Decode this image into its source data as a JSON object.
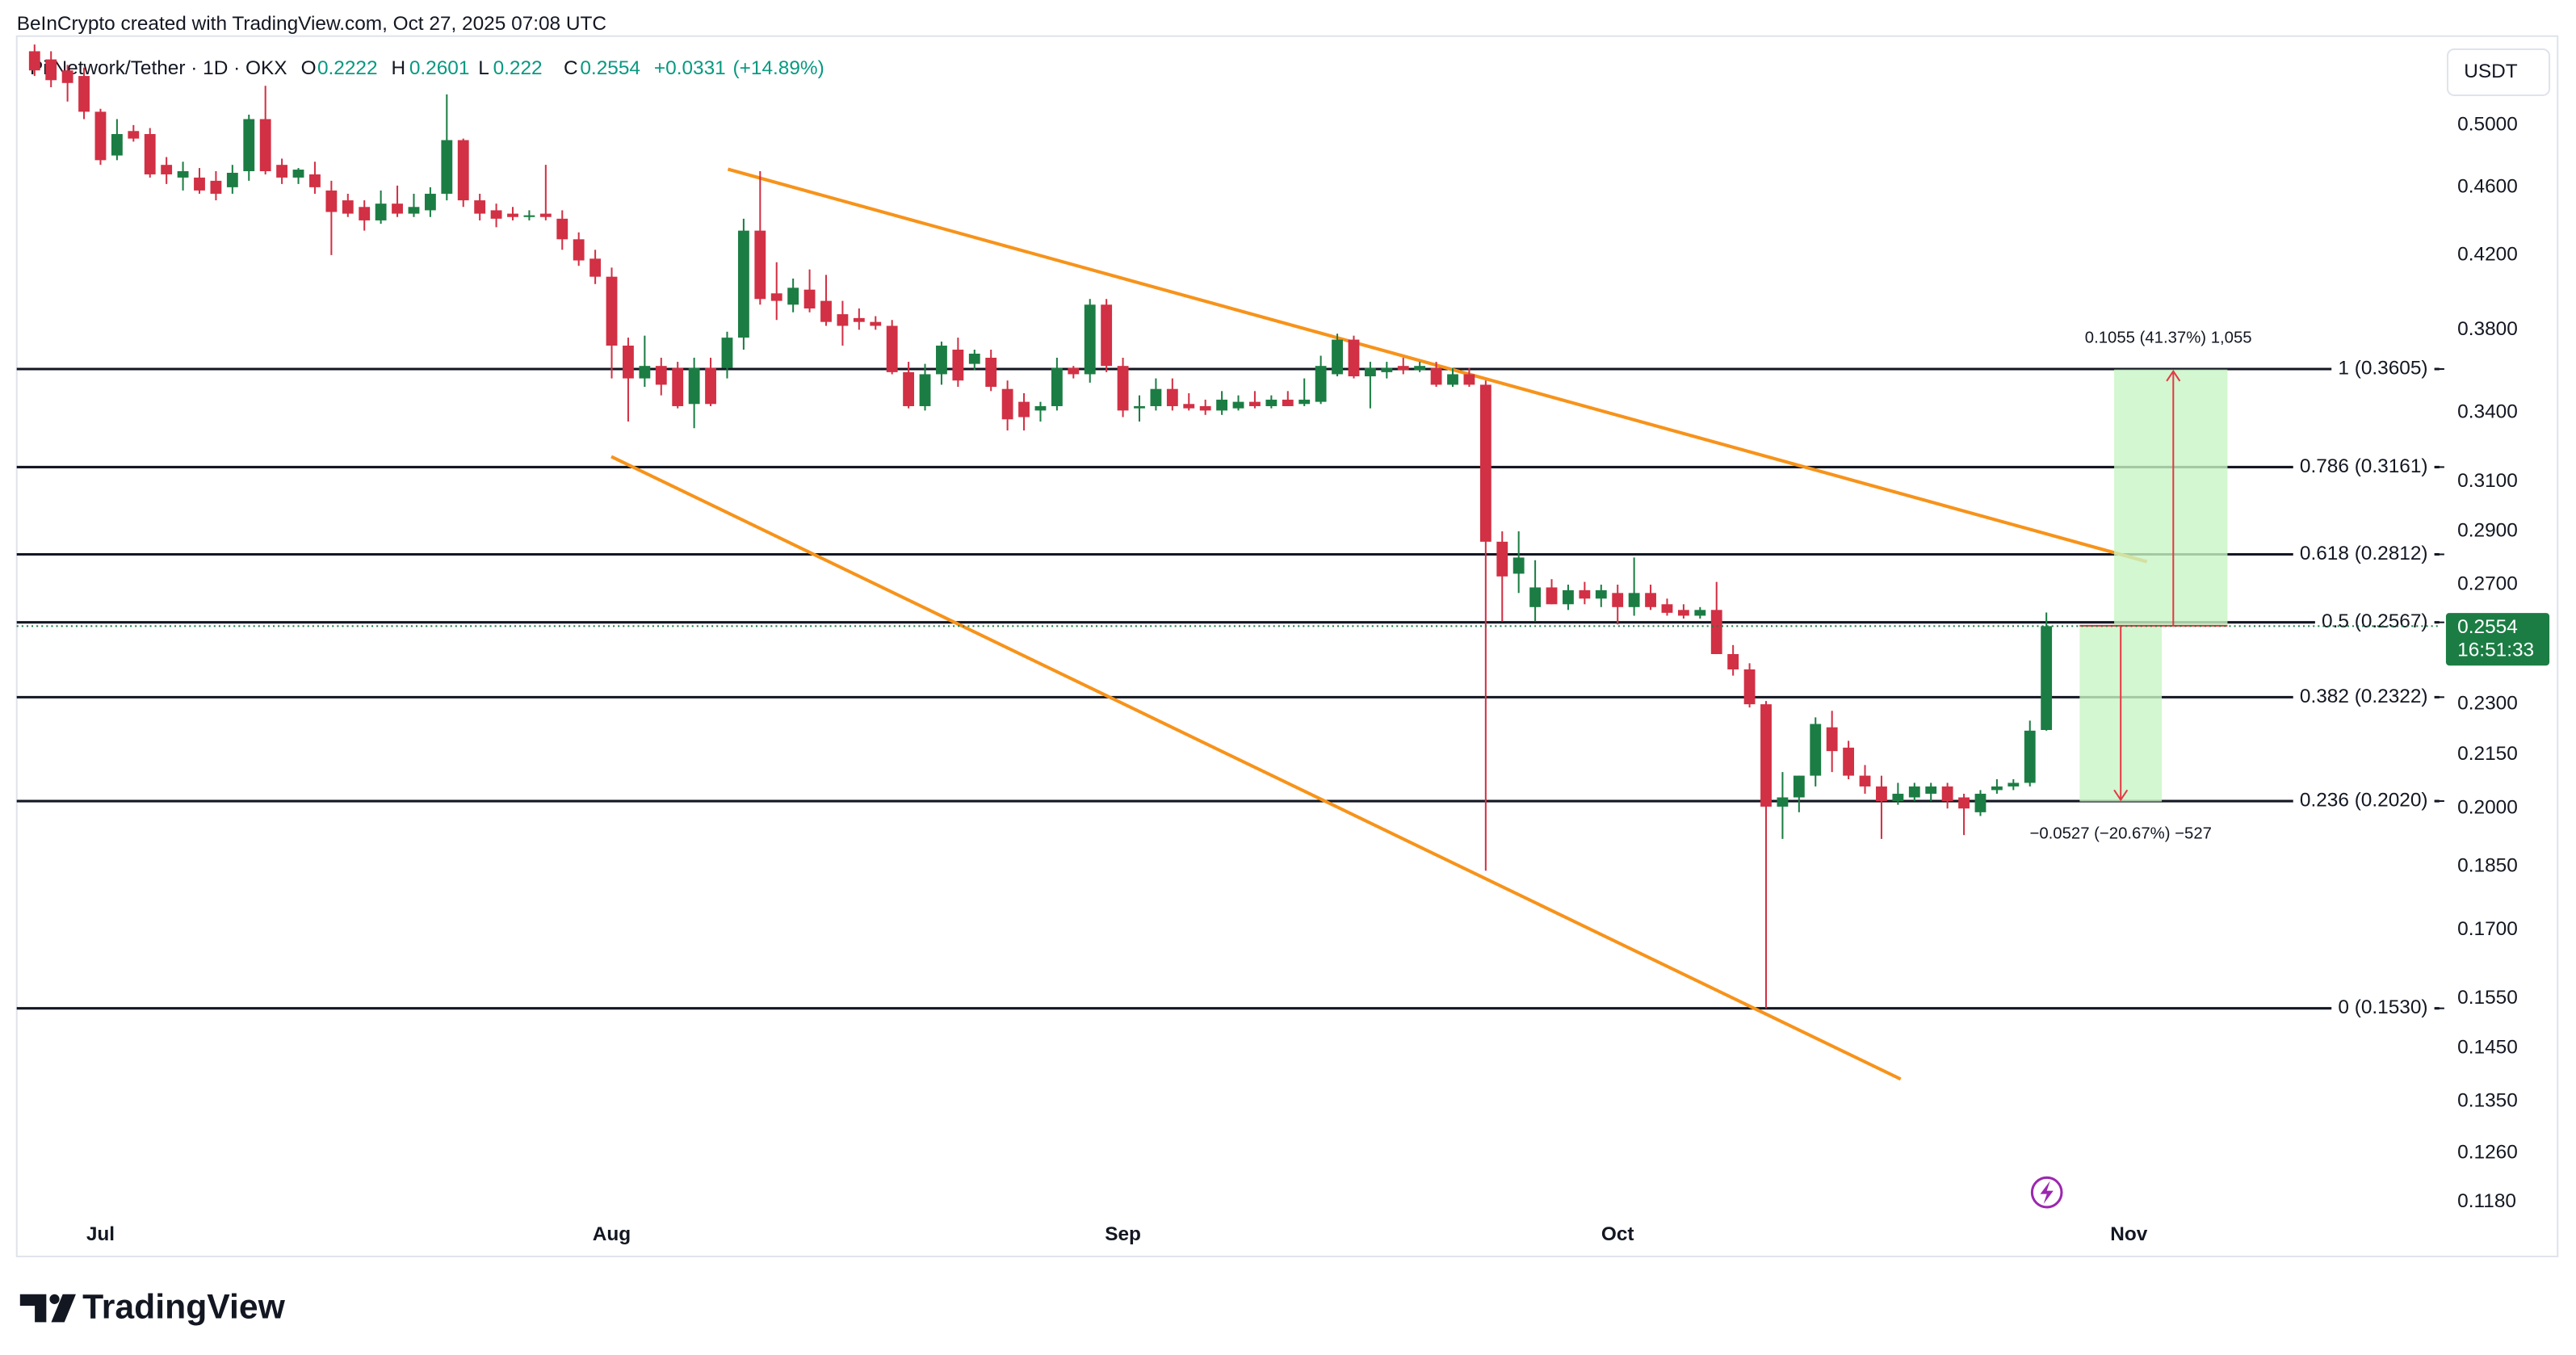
{
  "header": {
    "credit": "BeInCrypto created with TradingView.com, Oct 27, 2025 07:08 UTC",
    "symbol": "Pi Network/Tether · 1D · OKX",
    "ohlc_labels": [
      "O",
      "H",
      "L",
      "C"
    ],
    "change": "+0.0331",
    "change_pct": "(+14.89%)",
    "currency": "USDT",
    "countdown": "16:51:33",
    "brand": "TradingView"
  },
  "chart_data": {
    "type": "candlestick",
    "log_scale": true,
    "up_color": "#1b7d43",
    "down_color": "#d23044",
    "x": [
      -4,
      -3,
      -2,
      -1,
      0,
      1,
      2,
      3,
      4,
      5,
      6,
      7,
      8,
      9,
      10,
      11,
      12,
      13,
      14,
      15,
      16,
      17,
      18,
      19,
      20,
      21,
      22,
      23,
      24,
      25,
      26,
      27,
      28,
      29,
      30,
      31,
      32,
      33,
      34,
      35,
      36,
      37,
      38,
      39,
      40,
      41,
      42,
      43,
      44,
      45,
      46,
      47,
      48,
      49,
      50,
      51,
      52,
      53,
      54,
      55,
      56,
      57,
      58,
      59,
      60,
      61,
      62,
      63,
      64,
      65,
      66,
      67,
      68,
      69,
      70,
      71,
      72,
      73,
      74,
      75,
      76,
      77,
      78,
      79,
      80,
      81,
      82,
      83,
      84,
      85,
      86,
      87,
      88,
      89,
      90,
      91,
      92,
      93,
      94,
      95,
      96,
      97,
      98,
      99,
      100,
      101,
      102,
      103,
      104,
      105,
      106,
      107,
      108,
      109,
      110,
      111,
      112,
      113,
      114,
      115,
      116,
      117,
      118
    ],
    "open": [
      0.552,
      0.546,
      0.538,
      0.534,
      0.509,
      0.48,
      0.496,
      0.494,
      0.474,
      0.466,
      0.466,
      0.464,
      0.46,
      0.47,
      0.504,
      0.474,
      0.466,
      0.468,
      0.458,
      0.452,
      0.448,
      0.44,
      0.45,
      0.444,
      0.446,
      0.456,
      0.49,
      0.452,
      0.446,
      0.444,
      0.442,
      0.444,
      0.441,
      0.429,
      0.418,
      0.408,
      0.372,
      0.356,
      0.362,
      0.361,
      0.344,
      0.361,
      0.361,
      0.376,
      0.434,
      0.399,
      0.393,
      0.401,
      0.395,
      0.388,
      0.386,
      0.384,
      0.382,
      0.359,
      0.343,
      0.358,
      0.37,
      0.363,
      0.366,
      0.351,
      0.345,
      0.341,
      0.343,
      0.361,
      0.358,
      0.393,
      0.362,
      0.342,
      0.343,
      0.351,
      0.344,
      0.343,
      0.341,
      0.342,
      0.345,
      0.343,
      0.346,
      0.344,
      0.345,
      0.358,
      0.375,
      0.357,
      0.359,
      0.362,
      0.36,
      0.361,
      0.353,
      0.358,
      0.353,
      0.286,
      0.274,
      0.262,
      0.269,
      0.263,
      0.268,
      0.265,
      0.267,
      0.262,
      0.267,
      0.263,
      0.261,
      0.259,
      0.261,
      0.246,
      0.241,
      0.23,
      0.2005,
      0.203,
      0.209,
      0.223,
      0.217,
      0.209,
      0.206,
      0.202,
      0.203,
      0.204,
      0.206,
      0.203,
      0.199,
      0.205,
      0.206,
      0.207,
      0.2222
    ],
    "high": [
      0.557,
      0.552,
      0.542,
      0.54,
      0.511,
      0.504,
      0.5,
      0.498,
      0.479,
      0.476,
      0.472,
      0.47,
      0.474,
      0.507,
      0.527,
      0.478,
      0.472,
      0.476,
      0.464,
      0.456,
      0.452,
      0.458,
      0.461,
      0.456,
      0.46,
      0.521,
      0.491,
      0.456,
      0.45,
      0.448,
      0.446,
      0.474,
      0.446,
      0.433,
      0.423,
      0.413,
      0.376,
      0.377,
      0.366,
      0.364,
      0.366,
      0.366,
      0.379,
      0.441,
      0.47,
      0.416,
      0.407,
      0.412,
      0.409,
      0.395,
      0.391,
      0.387,
      0.385,
      0.364,
      0.363,
      0.374,
      0.376,
      0.37,
      0.37,
      0.355,
      0.349,
      0.345,
      0.366,
      0.362,
      0.396,
      0.396,
      0.366,
      0.348,
      0.356,
      0.356,
      0.349,
      0.346,
      0.35,
      0.348,
      0.35,
      0.348,
      0.35,
      0.356,
      0.367,
      0.378,
      0.377,
      0.364,
      0.364,
      0.366,
      0.364,
      0.364,
      0.361,
      0.361,
      0.355,
      0.29,
      0.29,
      0.279,
      0.272,
      0.27,
      0.271,
      0.27,
      0.27,
      0.28,
      0.27,
      0.265,
      0.263,
      0.262,
      0.271,
      0.249,
      0.243,
      0.231,
      0.21,
      0.209,
      0.226,
      0.228,
      0.219,
      0.212,
      0.209,
      0.207,
      0.207,
      0.207,
      0.207,
      0.204,
      0.205,
      0.208,
      0.208,
      0.225,
      0.2601
    ],
    "low": [
      0.534,
      0.526,
      0.516,
      0.504,
      0.474,
      0.477,
      0.489,
      0.466,
      0.462,
      0.458,
      0.456,
      0.452,
      0.456,
      0.464,
      0.468,
      0.462,
      0.462,
      0.456,
      0.42,
      0.442,
      0.434,
      0.438,
      0.442,
      0.442,
      0.442,
      0.452,
      0.448,
      0.44,
      0.436,
      0.44,
      0.44,
      0.44,
      0.423,
      0.414,
      0.404,
      0.356,
      0.336,
      0.352,
      0.348,
      0.342,
      0.333,
      0.343,
      0.356,
      0.37,
      0.393,
      0.385,
      0.389,
      0.389,
      0.382,
      0.372,
      0.38,
      0.38,
      0.358,
      0.342,
      0.341,
      0.353,
      0.352,
      0.36,
      0.35,
      0.332,
      0.332,
      0.336,
      0.341,
      0.356,
      0.354,
      0.359,
      0.338,
      0.336,
      0.341,
      0.341,
      0.341,
      0.339,
      0.339,
      0.341,
      0.342,
      0.342,
      0.343,
      0.343,
      0.344,
      0.357,
      0.356,
      0.342,
      0.356,
      0.358,
      0.359,
      0.352,
      0.352,
      0.352,
      0.184,
      0.257,
      0.267,
      0.257,
      0.263,
      0.261,
      0.263,
      0.262,
      0.256,
      0.259,
      0.261,
      0.259,
      0.258,
      0.258,
      0.246,
      0.239,
      0.229,
      0.153,
      0.192,
      0.199,
      0.206,
      0.21,
      0.208,
      0.204,
      0.192,
      0.201,
      0.202,
      0.202,
      0.2,
      0.193,
      0.198,
      0.204,
      0.205,
      0.206,
      0.222
    ],
    "close": [
      0.538,
      0.531,
      0.529,
      0.509,
      0.477,
      0.494,
      0.491,
      0.468,
      0.468,
      0.47,
      0.458,
      0.456,
      0.469,
      0.504,
      0.47,
      0.466,
      0.471,
      0.46,
      0.445,
      0.444,
      0.44,
      0.45,
      0.444,
      0.448,
      0.456,
      0.49,
      0.452,
      0.444,
      0.441,
      0.442,
      0.443,
      0.442,
      0.429,
      0.417,
      0.408,
      0.372,
      0.356,
      0.362,
      0.353,
      0.343,
      0.361,
      0.344,
      0.376,
      0.434,
      0.396,
      0.395,
      0.402,
      0.391,
      0.384,
      0.382,
      0.384,
      0.382,
      0.359,
      0.343,
      0.358,
      0.372,
      0.355,
      0.368,
      0.352,
      0.337,
      0.338,
      0.343,
      0.361,
      0.358,
      0.393,
      0.362,
      0.341,
      0.343,
      0.351,
      0.343,
      0.342,
      0.341,
      0.346,
      0.345,
      0.343,
      0.346,
      0.343,
      0.346,
      0.362,
      0.375,
      0.357,
      0.361,
      0.361,
      0.36,
      0.362,
      0.353,
      0.358,
      0.353,
      0.286,
      0.273,
      0.28,
      0.269,
      0.263,
      0.268,
      0.265,
      0.268,
      0.262,
      0.267,
      0.262,
      0.26,
      0.259,
      0.261,
      0.246,
      0.241,
      0.23,
      0.2005,
      0.203,
      0.209,
      0.224,
      0.216,
      0.209,
      0.206,
      0.202,
      0.204,
      0.206,
      0.206,
      0.202,
      0.2,
      0.204,
      0.206,
      0.207,
      0.222,
      0.2554
    ],
    "xlim": [
      -5.08,
      141.83
    ],
    "xticks": [
      {
        "value": 0,
        "label": "Jul"
      },
      {
        "value": 31,
        "label": "Aug"
      },
      {
        "value": 62,
        "label": "Sep"
      },
      {
        "value": 92,
        "label": "Oct"
      },
      {
        "value": 123,
        "label": "Nov"
      }
    ],
    "ylim": [
      0.1154,
      0.5633
    ],
    "yticks": [
      {
        "value": 0.5,
        "label": "0.5000"
      },
      {
        "value": 0.46,
        "label": "0.4600"
      },
      {
        "value": 0.42,
        "label": "0.4200"
      },
      {
        "value": 0.38,
        "label": "0.3800"
      },
      {
        "value": 0.34,
        "label": "0.3400"
      },
      {
        "value": 0.31,
        "label": "0.3100"
      },
      {
        "value": 0.29,
        "label": "0.2900"
      },
      {
        "value": 0.27,
        "label": "0.2700"
      },
      {
        "value": 0.23,
        "label": "0.2300"
      },
      {
        "value": 0.215,
        "label": "0.2150"
      },
      {
        "value": 0.2,
        "label": "0.2000"
      },
      {
        "value": 0.185,
        "label": "0.1850"
      },
      {
        "value": 0.17,
        "label": "0.1700"
      },
      {
        "value": 0.155,
        "label": "0.1550"
      },
      {
        "value": 0.145,
        "label": "0.1450"
      },
      {
        "value": 0.135,
        "label": "0.1350"
      },
      {
        "value": 0.126,
        "label": "0.1260"
      },
      {
        "value": 0.118,
        "label": "0.1180"
      }
    ],
    "fib_levels": [
      {
        "value": 0.3605,
        "label": "1 (0.3605)"
      },
      {
        "value": 0.3161,
        "label": "0.786 (0.3161)"
      },
      {
        "value": 0.2812,
        "label": "0.618 (0.2812)"
      },
      {
        "value": 0.2567,
        "label": "0.5 (0.2567)"
      },
      {
        "value": 0.2322,
        "label": "0.382 (0.2322)"
      },
      {
        "value": 0.202,
        "label": "0.236 (0.2020)"
      },
      {
        "value": 0.153,
        "label": "0 (0.1530)"
      }
    ],
    "measurements": [
      "0.1055 (41.37%) 1,055",
      "−0.0527 (−20.67%) −527"
    ]
  }
}
